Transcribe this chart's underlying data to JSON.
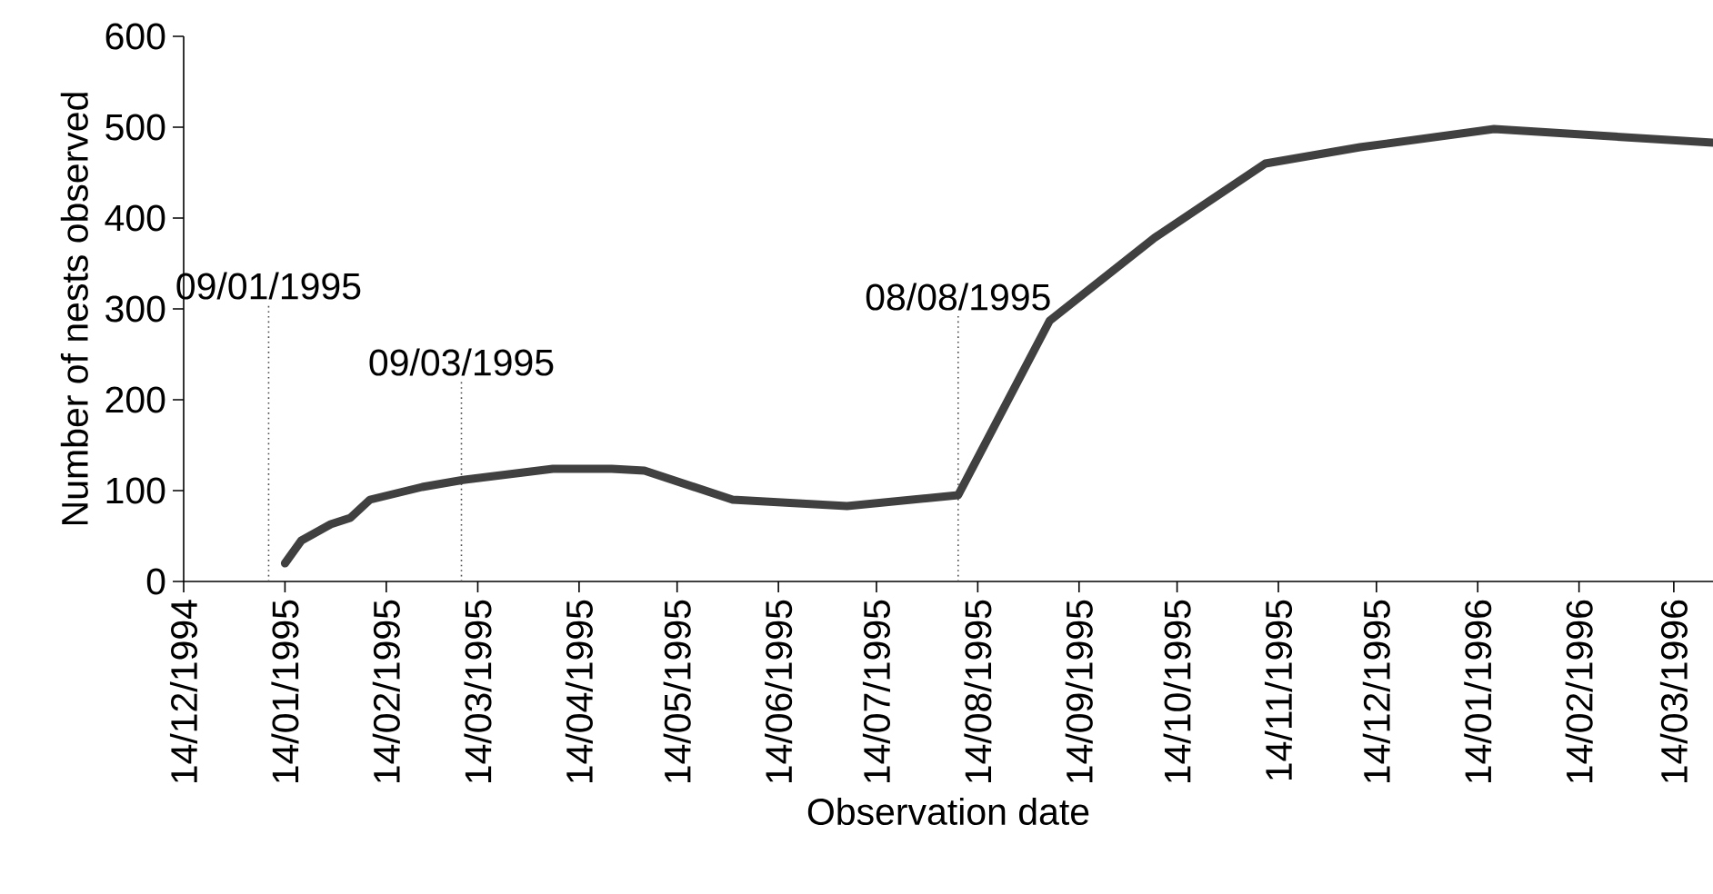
{
  "chart_data": {
    "type": "line",
    "xlabel": "Observation date",
    "ylabel": "Number of nests observed",
    "x": [
      "1995-01-14",
      "1995-01-19",
      "1995-01-28",
      "1995-02-03",
      "1995-02-09",
      "1995-02-25",
      "1995-03-10",
      "1995-04-06",
      "1995-04-24",
      "1995-05-04",
      "1995-05-31",
      "1995-07-05",
      "1995-08-08",
      "1995-09-05",
      "1995-10-07",
      "1995-11-10",
      "1995-12-09",
      "1996-01-19",
      "1996-03-26"
    ],
    "series": [
      {
        "color": "#404040",
        "values": [
          20,
          45,
          63,
          70,
          90,
          104,
          112,
          124,
          124,
          122,
          90,
          83,
          95,
          287,
          378,
          460,
          478,
          498,
          483
        ]
      }
    ],
    "xlim": [
      "1994-12-14",
      "1996-03-26"
    ],
    "xticks": [
      {
        "value": "1994-12-14",
        "label": "14/12/1994"
      },
      {
        "value": "1995-01-14",
        "label": "14/01/1995"
      },
      {
        "value": "1995-02-14",
        "label": "14/02/1995"
      },
      {
        "value": "1995-03-14",
        "label": "14/03/1995"
      },
      {
        "value": "1995-04-14",
        "label": "14/04/1995"
      },
      {
        "value": "1995-05-14",
        "label": "14/05/1995"
      },
      {
        "value": "1995-06-14",
        "label": "14/06/1995"
      },
      {
        "value": "1995-07-14",
        "label": "14/07/1995"
      },
      {
        "value": "1995-08-14",
        "label": "14/08/1995"
      },
      {
        "value": "1995-09-14",
        "label": "14/09/1995"
      },
      {
        "value": "1995-10-14",
        "label": "14/10/1995"
      },
      {
        "value": "1995-11-14",
        "label": "14/11/1995"
      },
      {
        "value": "1995-12-14",
        "label": "14/12/1995"
      },
      {
        "value": "1996-01-14",
        "label": "14/01/1996"
      },
      {
        "value": "1996-02-14",
        "label": "14/02/1996"
      },
      {
        "value": "1996-03-14",
        "label": "14/03/1996"
      }
    ],
    "ylim": [
      0,
      600
    ],
    "yticks": [
      0,
      100,
      200,
      300,
      400,
      500,
      600
    ],
    "ref_lines": [
      {
        "axis": "x",
        "value": "1995-01-09",
        "label": "09/01/1995",
        "line_style": "dotted"
      },
      {
        "axis": "x",
        "value": "1995-03-09",
        "label": "09/03/1995",
        "line_style": "dotted"
      },
      {
        "axis": "x",
        "value": "1995-08-08",
        "label": "08/08/1995",
        "line_style": "dotted"
      }
    ],
    "grid": false,
    "marker": "none",
    "line_style": "solid"
  }
}
